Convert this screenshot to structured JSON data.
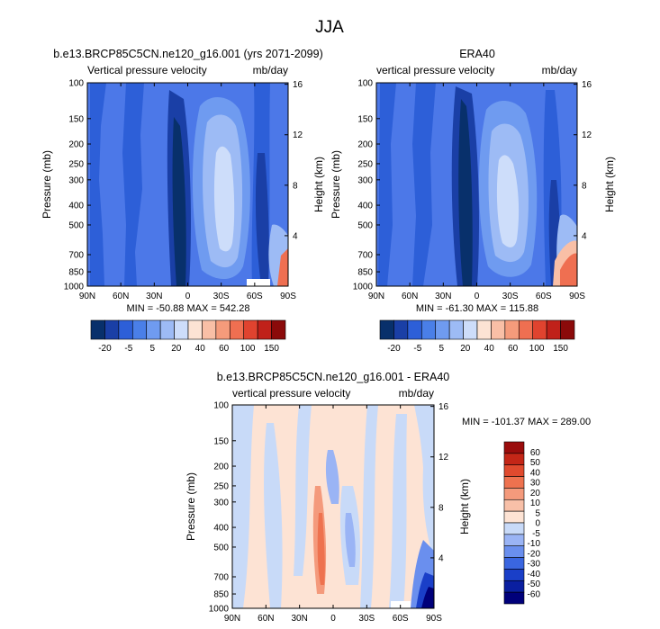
{
  "page_title": "JJA",
  "colors": {
    "scale11": [
      "#08306b",
      "#1a3fa6",
      "#2d5fd8",
      "#4a7fe8",
      "#6f9bf0",
      "#9dbbf5",
      "#cdddfa",
      "#fce3d4",
      "#f9bfa6",
      "#f59b7b",
      "#ef6f51",
      "#e0432f",
      "#c0211a",
      "#8b0a0a"
    ],
    "scale_diff": [
      "#00007a",
      "#0a1fa0",
      "#1a3fc8",
      "#3a66e0",
      "#6a8fee",
      "#9ab4f5",
      "#c8daf8",
      "#fde3d4",
      "#f8c0a8",
      "#f49a7c",
      "#ee724f",
      "#e04a2e",
      "#c42617",
      "#9a0c0c"
    ],
    "bg_base": "#4c78e8",
    "bg_diff": "#fde3d4"
  },
  "chart_data": [
    {
      "type": "heatmap",
      "id": "model",
      "title": "b.e13.BRCP85C5CN.ne120_g16.001 (yrs 2071-2099)",
      "left_label": "Vertical pressure velocity",
      "right_label": "mb/day",
      "ylabel": "Pressure (mb)",
      "y2label": "Height (km)",
      "x_ticks": [
        "90N",
        "60N",
        "30N",
        "0",
        "30S",
        "60S",
        "90S"
      ],
      "x_values": [
        90,
        60,
        30,
        0,
        -30,
        -60,
        -90
      ],
      "xlim": [
        90,
        -90
      ],
      "y_ticks": [
        "100",
        "150",
        "200",
        "250",
        "300",
        "400",
        "500",
        "700",
        "850",
        "1000"
      ],
      "y_values": [
        100,
        150,
        200,
        250,
        300,
        400,
        500,
        700,
        850,
        1000
      ],
      "ylim": [
        100,
        1000
      ],
      "y2_ticks": [
        "16",
        "12",
        "8",
        "4"
      ],
      "y2_values": [
        16,
        12,
        8,
        4
      ],
      "minmax": "MIN = -50.88  MAX = 542.28",
      "colorbar_labels": [
        "-20",
        "-5",
        "5",
        "20",
        "40",
        "60",
        "100",
        "150"
      ]
    },
    {
      "type": "heatmap",
      "id": "obs",
      "title": "ERA40",
      "left_label": "vertical pressure velocity",
      "right_label": "mb/day",
      "ylabel": "Pressure (mb)",
      "y2label": "Height (km)",
      "x_ticks": [
        "90N",
        "60N",
        "30N",
        "0",
        "30S",
        "60S",
        "90S"
      ],
      "x_values": [
        90,
        60,
        30,
        0,
        -30,
        -60,
        -90
      ],
      "xlim": [
        90,
        -90
      ],
      "y_ticks": [
        "100",
        "150",
        "200",
        "250",
        "300",
        "400",
        "500",
        "700",
        "850",
        "1000"
      ],
      "y_values": [
        100,
        150,
        200,
        250,
        300,
        400,
        500,
        700,
        850,
        1000
      ],
      "ylim": [
        100,
        1000
      ],
      "y2_ticks": [
        "16",
        "12",
        "8",
        "4"
      ],
      "y2_values": [
        16,
        12,
        8,
        4
      ],
      "minmax": "MIN = -61.30  MAX = 115.88",
      "colorbar_labels": [
        "-20",
        "-5",
        "5",
        "20",
        "40",
        "60",
        "100",
        "150"
      ]
    },
    {
      "type": "heatmap",
      "id": "diff",
      "title": "b.e13.BRCP85C5CN.ne120_g16.001 - ERA40",
      "left_label": "vertical pressure velocity",
      "right_label": "mb/day",
      "ylabel": "Pressure (mb)",
      "y2label": "Height (km)",
      "x_ticks": [
        "90N",
        "60N",
        "30N",
        "0",
        "30S",
        "60S",
        "90S"
      ],
      "x_values": [
        90,
        60,
        30,
        0,
        -30,
        -60,
        -90
      ],
      "xlim": [
        90,
        -90
      ],
      "y_ticks": [
        "100",
        "150",
        "200",
        "250",
        "300",
        "400",
        "500",
        "700",
        "850",
        "1000"
      ],
      "y_values": [
        100,
        150,
        200,
        250,
        300,
        400,
        500,
        700,
        850,
        1000
      ],
      "ylim": [
        100,
        1000
      ],
      "y2_ticks": [
        "16",
        "12",
        "8",
        "4"
      ],
      "y2_values": [
        16,
        12,
        8,
        4
      ],
      "minmax": "MIN = -101.37  MAX = 289.00",
      "colorbar_labels": [
        "60",
        "50",
        "40",
        "30",
        "20",
        "10",
        "5",
        "0",
        "-5",
        "-10",
        "-20",
        "-30",
        "-40",
        "-50",
        "-60"
      ]
    }
  ]
}
